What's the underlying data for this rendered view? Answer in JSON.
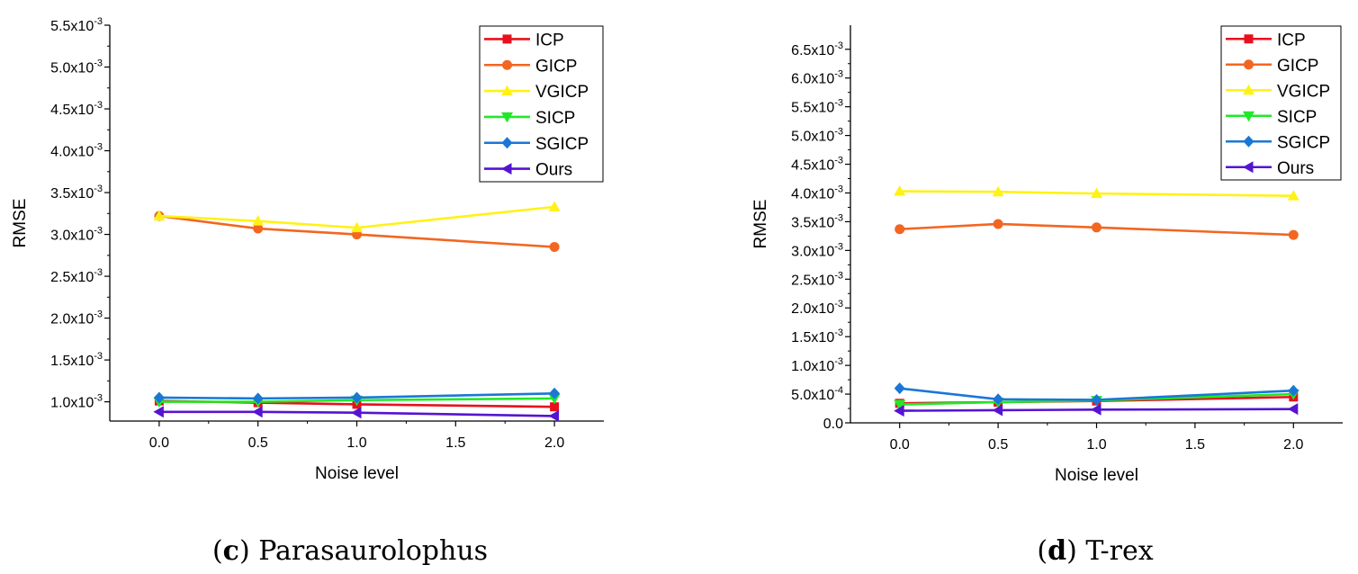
{
  "chart_data": [
    {
      "type": "line",
      "caption_letter": "c",
      "caption_text": "Parasaurolophus",
      "xlabel": "Noise level",
      "ylabel": "RMSE",
      "x": [
        0.0,
        0.5,
        1.0,
        2.0
      ],
      "xticks": [
        "0.0",
        "0.5",
        "1.0",
        "1.5",
        "2.0"
      ],
      "xtick_values": [
        0.0,
        0.5,
        1.0,
        1.5,
        2.0
      ],
      "xlim": [
        -0.25,
        2.25
      ],
      "ylim": [
        0.00077,
        0.0055
      ],
      "yticks": [
        {
          "value": 0.001,
          "mant": "1.0x10",
          "exp": "-3"
        },
        {
          "value": 0.0015,
          "mant": "1.5x10",
          "exp": "-3"
        },
        {
          "value": 0.002,
          "mant": "2.0x10",
          "exp": "-3"
        },
        {
          "value": 0.0025,
          "mant": "2.5x10",
          "exp": "-3"
        },
        {
          "value": 0.003,
          "mant": "3.0x10",
          "exp": "-3"
        },
        {
          "value": 0.0035,
          "mant": "3.5x10",
          "exp": "-3"
        },
        {
          "value": 0.004,
          "mant": "4.0x10",
          "exp": "-3"
        },
        {
          "value": 0.0045,
          "mant": "4.5x10",
          "exp": "-3"
        },
        {
          "value": 0.005,
          "mant": "5.0x10",
          "exp": "-3"
        },
        {
          "value": 0.0055,
          "mant": "5.5x10",
          "exp": "-3"
        }
      ],
      "legend_position": "top-right",
      "series": [
        {
          "name": "ICP",
          "color": "#e8101e",
          "marker": "square",
          "values": [
            0.00101,
            0.00099,
            0.00097,
            0.00094
          ]
        },
        {
          "name": "GICP",
          "color": "#f26622",
          "marker": "circle",
          "values": [
            0.00322,
            0.00307,
            0.003,
            0.00285
          ]
        },
        {
          "name": "VGICP",
          "color": "#fff215",
          "marker": "triangle-up",
          "values": [
            0.00322,
            0.00316,
            0.00308,
            0.00333
          ]
        },
        {
          "name": "SICP",
          "color": "#20e828",
          "marker": "triangle-down",
          "values": [
            0.001,
            0.001,
            0.00102,
            0.00104
          ]
        },
        {
          "name": "SGICP",
          "color": "#1a77d6",
          "marker": "diamond",
          "values": [
            0.00105,
            0.00104,
            0.00105,
            0.0011
          ]
        },
        {
          "name": "Ours",
          "color": "#5514d2",
          "marker": "triangle-left",
          "values": [
            0.00088,
            0.00088,
            0.00087,
            0.00083
          ]
        }
      ]
    },
    {
      "type": "line",
      "caption_letter": "d",
      "caption_text": "T-rex",
      "xlabel": "Noise level",
      "ylabel": "RMSE",
      "x": [
        0.0,
        0.5,
        1.0,
        2.0
      ],
      "xticks": [
        "0.0",
        "0.5",
        "1.0",
        "1.5",
        "2.0"
      ],
      "xtick_values": [
        0.0,
        0.5,
        1.0,
        1.5,
        2.0
      ],
      "xlim": [
        -0.25,
        2.25
      ],
      "ylim": [
        0.0,
        0.0067
      ],
      "yticks": [
        {
          "value": 0.0,
          "mant": "0.0",
          "exp": ""
        },
        {
          "value": 0.0005,
          "mant": "5.0x10",
          "exp": "-4"
        },
        {
          "value": 0.001,
          "mant": "1.0x10",
          "exp": "-3"
        },
        {
          "value": 0.0015,
          "mant": "1.5x10",
          "exp": "-3"
        },
        {
          "value": 0.002,
          "mant": "2.0x10",
          "exp": "-3"
        },
        {
          "value": 0.0025,
          "mant": "2.5x10",
          "exp": "-3"
        },
        {
          "value": 0.003,
          "mant": "3.0x10",
          "exp": "-3"
        },
        {
          "value": 0.0035,
          "mant": "3.5x10",
          "exp": "-3"
        },
        {
          "value": 0.004,
          "mant": "4.0x10",
          "exp": "-3"
        },
        {
          "value": 0.0045,
          "mant": "4.5x10",
          "exp": "-3"
        },
        {
          "value": 0.005,
          "mant": "5.0x10",
          "exp": "-3"
        },
        {
          "value": 0.0055,
          "mant": "5.5x10",
          "exp": "-3"
        },
        {
          "value": 0.006,
          "mant": "6.0x10",
          "exp": "-3"
        },
        {
          "value": 0.0065,
          "mant": "6.5x10",
          "exp": "-3"
        }
      ],
      "legend_position": "top-right",
      "series": [
        {
          "name": "ICP",
          "color": "#e8101e",
          "marker": "square",
          "values": [
            0.00034,
            0.00036,
            0.00038,
            0.00045
          ]
        },
        {
          "name": "GICP",
          "color": "#f26622",
          "marker": "circle",
          "values": [
            0.00337,
            0.00346,
            0.0034,
            0.00327
          ]
        },
        {
          "name": "VGICP",
          "color": "#fff215",
          "marker": "triangle-up",
          "values": [
            0.00403,
            0.00402,
            0.00399,
            0.00395
          ]
        },
        {
          "name": "SICP",
          "color": "#20e828",
          "marker": "triangle-down",
          "values": [
            0.00032,
            0.00036,
            0.00039,
            0.0005
          ]
        },
        {
          "name": "SGICP",
          "color": "#1a77d6",
          "marker": "diamond",
          "values": [
            0.0006,
            0.00041,
            0.0004,
            0.00056
          ]
        },
        {
          "name": "Ours",
          "color": "#5514d2",
          "marker": "triangle-left",
          "values": [
            0.00021,
            0.00022,
            0.00023,
            0.00024
          ]
        }
      ]
    }
  ]
}
